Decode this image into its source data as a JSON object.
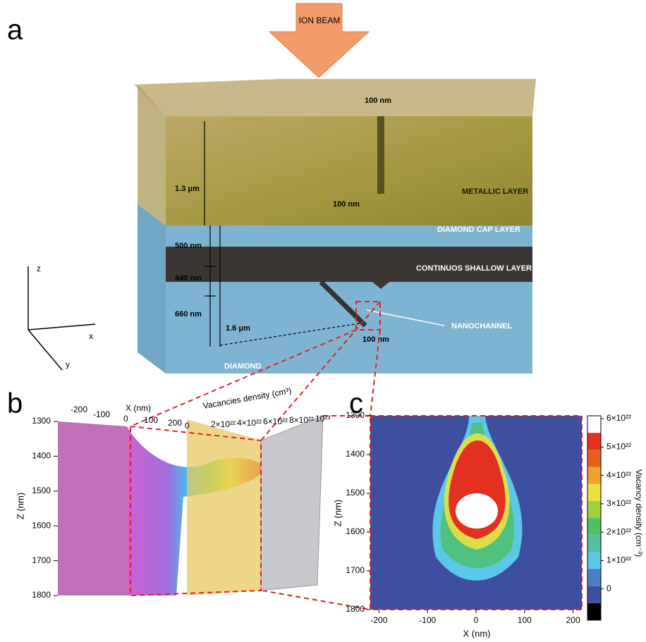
{
  "panel_a": {
    "label": "a",
    "beam": "ION BEAM",
    "dimensions": [
      "100 nm",
      "1.3 μm",
      "100 nm",
      "500 nm",
      "440 nm",
      "660 nm",
      "1.6 μm",
      "100 nm"
    ],
    "layers": [
      "METALLIC LAYER",
      "DIAMOND CAP LAYER",
      "CONTINUOS SHALLOW LAYER",
      "NANOCHANNEL",
      "DIAMOND"
    ],
    "axes": [
      "z",
      "x",
      "y"
    ]
  },
  "panel_b": {
    "label": "b",
    "z_axis": {
      "label": "Z (nm)",
      "lim": [
        1300,
        1800
      ],
      "ticks": [
        1300,
        1400,
        1500,
        1600,
        1700,
        1800
      ]
    },
    "x_axis": {
      "label": "X (nm)",
      "ticks": [
        -200,
        -100,
        0,
        100,
        200
      ]
    },
    "density_axis": {
      "label": "Vacancies density (cm³)",
      "ticks": [
        {
          "value": 0,
          "label": "0"
        },
        {
          "value": 2e+22,
          "label": "2×10²²"
        },
        {
          "value": 4e+22,
          "label": "4×10²²"
        },
        {
          "value": 6e+22,
          "label": "6×10²²"
        },
        {
          "value": 8e+22,
          "label": "8×10²²"
        },
        {
          "value": 1e+23,
          "label": "10²³"
        }
      ]
    }
  },
  "panel_c": {
    "label": "c",
    "x_axis": {
      "label": "X (nm)",
      "lim": [
        -218,
        218
      ],
      "ticks": [
        -200,
        -100,
        0,
        100,
        200
      ]
    },
    "y_axis": {
      "label": "Z (nm)",
      "lim": [
        1300,
        1800
      ],
      "ticks": [
        1300,
        1400,
        1500,
        1600,
        1700,
        1800
      ]
    },
    "colorbar": {
      "label": "Vacancy density (cm⁻³)",
      "lim": [
        -1.1e+22,
        6.1e+22
      ],
      "ticks": [
        {
          "value": 0,
          "label": "0"
        },
        {
          "value": 1e+22,
          "label": "1×10²²"
        },
        {
          "value": 2e+22,
          "label": "2×10²²"
        },
        {
          "value": 3e+22,
          "label": "3×10²²"
        },
        {
          "value": 4e+22,
          "label": "4×10²²"
        },
        {
          "value": 5e+22,
          "label": "5×10²²"
        },
        {
          "value": 6e+22,
          "label": "6×10²²"
        }
      ]
    }
  }
}
